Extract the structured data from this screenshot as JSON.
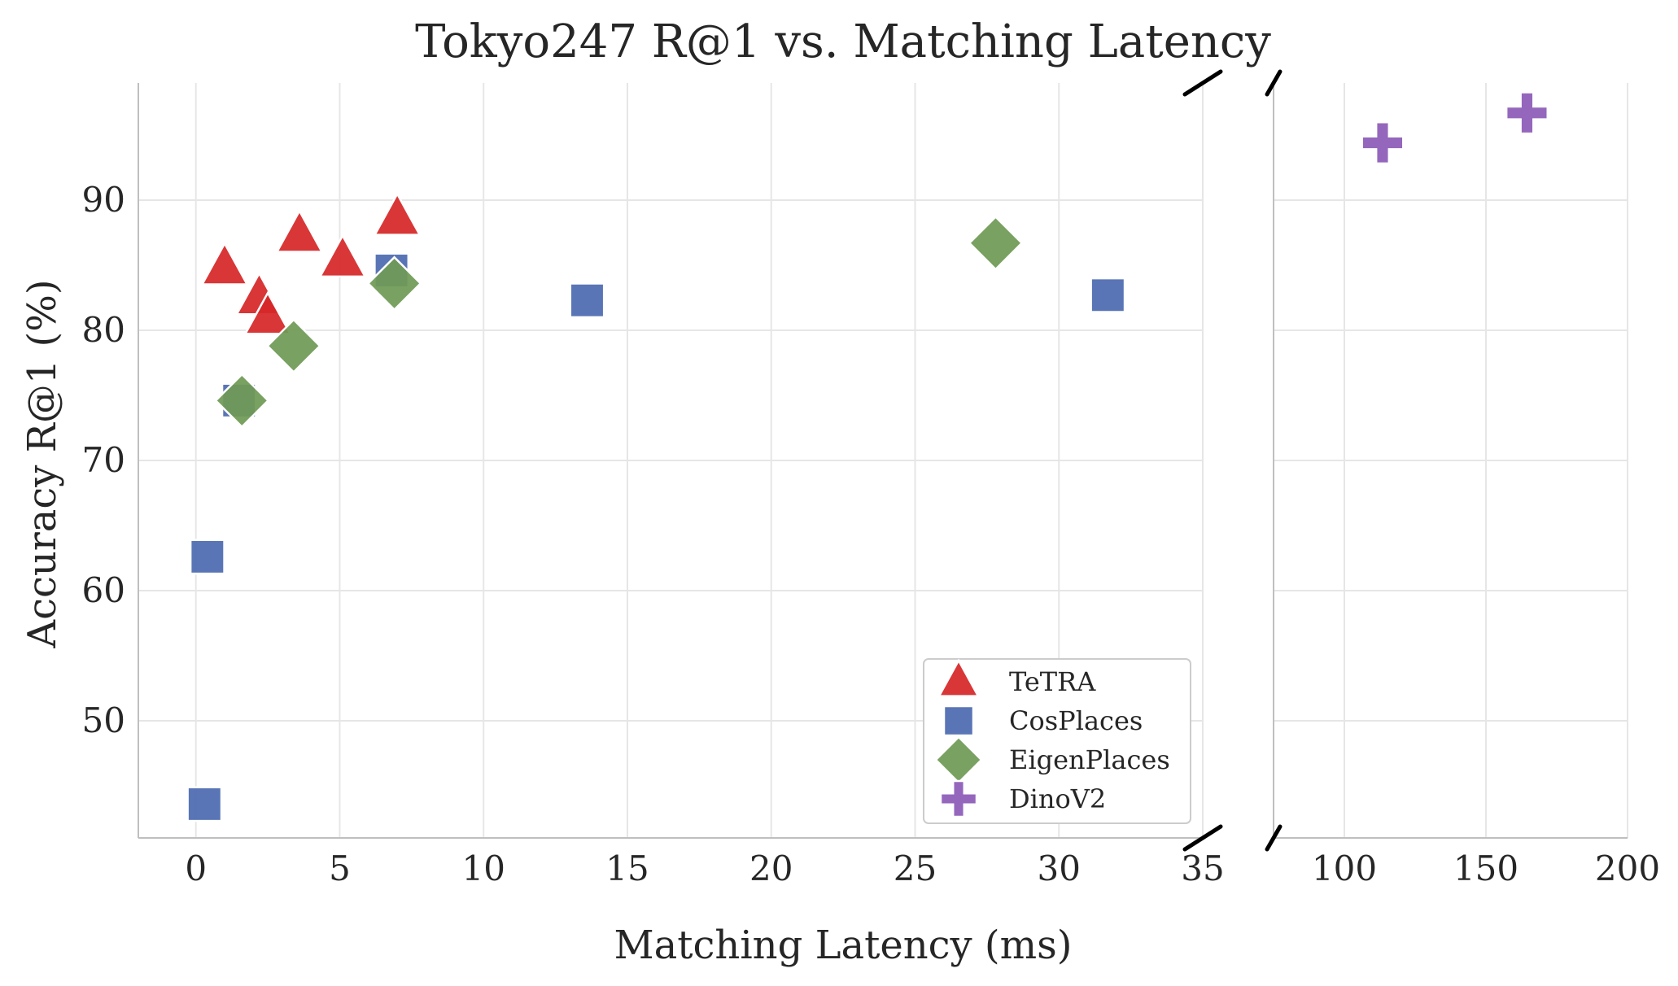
{
  "chart_data": {
    "type": "scatter",
    "title": "Tokyo247 R@1 vs. Matching Latency",
    "xlabel": "Matching Latency (ms)",
    "ylabel": "Accuracy R@1 (%)",
    "ylim": [
      41,
      99
    ],
    "yticks": [
      50,
      60,
      70,
      80,
      90
    ],
    "x_axis_broken": true,
    "x_left": {
      "xlim": [
        -2,
        35
      ],
      "ticks": [
        0,
        5,
        10,
        15,
        20,
        25,
        30,
        35
      ]
    },
    "x_right": {
      "xlim": [
        75,
        200
      ],
      "ticks": [
        100,
        150,
        200
      ]
    },
    "grid": true,
    "legend": {
      "position": "lower-right-of-left-panel"
    },
    "series": [
      {
        "name": "TeTRA",
        "marker": "triangle",
        "color": "#d62728",
        "points": [
          {
            "x": 1.0,
            "y": 84.8
          },
          {
            "x": 2.2,
            "y": 82.5
          },
          {
            "x": 2.5,
            "y": 81.0
          },
          {
            "x": 3.6,
            "y": 87.3
          },
          {
            "x": 5.1,
            "y": 85.4
          },
          {
            "x": 7.0,
            "y": 88.6
          }
        ]
      },
      {
        "name": "CosPlaces",
        "marker": "square",
        "color": "#4c6bb0",
        "points": [
          {
            "x": 0.3,
            "y": 43.6
          },
          {
            "x": 0.4,
            "y": 62.6
          },
          {
            "x": 1.5,
            "y": 74.6
          },
          {
            "x": 6.8,
            "y": 84.6
          },
          {
            "x": 13.6,
            "y": 82.3
          },
          {
            "x": 31.7,
            "y": 82.7
          }
        ]
      },
      {
        "name": "EigenPlaces",
        "marker": "diamond",
        "color": "#6f9a55",
        "points": [
          {
            "x": 1.6,
            "y": 74.6
          },
          {
            "x": 3.4,
            "y": 78.8
          },
          {
            "x": 6.9,
            "y": 83.6
          },
          {
            "x": 27.8,
            "y": 86.7
          }
        ]
      },
      {
        "name": "DinoV2",
        "marker": "plus",
        "color": "#8c5bb8",
        "points": [
          {
            "x": 113.5,
            "y": 94.4
          },
          {
            "x": 164.5,
            "y": 96.7
          }
        ]
      }
    ]
  }
}
